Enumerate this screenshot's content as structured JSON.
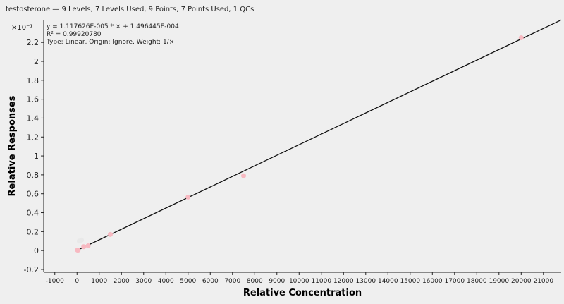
{
  "header": "testosterone — 9 Levels, 7 Levels Used, 9 Points, 7 Points Used, 1 QCs",
  "equation": {
    "line1": "y = 1.117626E-005 * × + 1.496445E-004",
    "line2": "R² = 0.99920780",
    "line3": "Type: Linear, Origin: Ignore, Weight: 1/×"
  },
  "y_multiplier": "×10⁻¹",
  "chart_data": {
    "type": "scatter",
    "title": "",
    "xlabel": "Relative Concentration",
    "ylabel": "Relative Responses",
    "xlim": [
      -1500,
      21800
    ],
    "ylim": [
      -0.23,
      2.44
    ],
    "x_ticks": [
      -1000,
      0,
      1000,
      2000,
      3000,
      4000,
      5000,
      6000,
      7000,
      8000,
      9000,
      10000,
      11000,
      12000,
      13000,
      14000,
      15000,
      16000,
      17000,
      18000,
      19000,
      20000,
      21000
    ],
    "y_ticks": [
      -0.2,
      0,
      0.2,
      0.4,
      0.6,
      0.8,
      1,
      1.2,
      1.4,
      1.6,
      1.8,
      2,
      2.2
    ],
    "y_tick_labels": [
      "-0.2",
      "0",
      "0.2",
      "0.4",
      "0.6",
      "0.8",
      "1",
      "1.2",
      "1.4",
      "1.6",
      "1.8",
      "2",
      "2.2"
    ],
    "fit": {
      "slope": 0.0001117626,
      "intercept": 0.001496445,
      "x_range": [
        0,
        21800
      ]
    },
    "points": [
      {
        "x": 20,
        "y": 0.005,
        "used": true
      },
      {
        "x": 50,
        "y": 0.005,
        "used": true
      },
      {
        "x": 300,
        "y": 0.04,
        "used": true
      },
      {
        "x": 500,
        "y": 0.05,
        "used": true
      },
      {
        "x": 1500,
        "y": 0.17,
        "used": true
      },
      {
        "x": 5000,
        "y": 0.565,
        "used": true
      },
      {
        "x": 7500,
        "y": 0.79,
        "used": true
      },
      {
        "x": 20000,
        "y": 2.25,
        "used": true
      },
      {
        "x": 100,
        "y": 0.1,
        "used": false
      },
      {
        "x": 200,
        "y": 0.11,
        "used": false
      }
    ],
    "colors": {
      "point": "#f7b9c1",
      "point_unused": "#e8e8e8",
      "line": "#111111",
      "axis": "#222222"
    },
    "grid": false
  }
}
